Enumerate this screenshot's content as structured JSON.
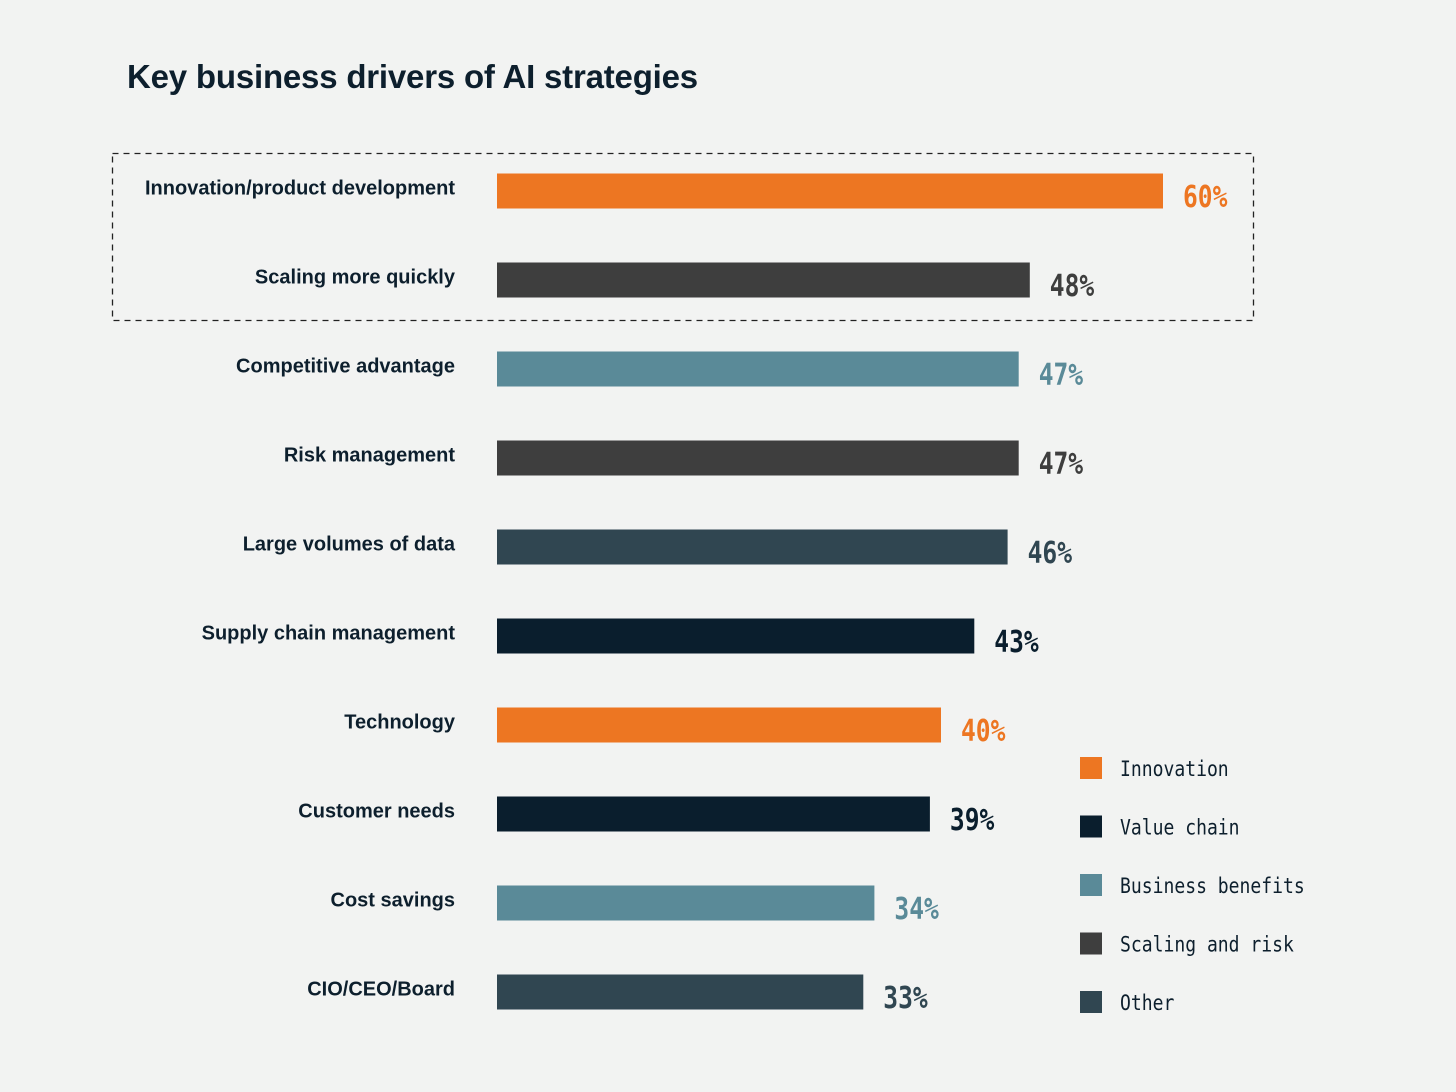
{
  "title": "Key business drivers of AI strategies",
  "chart_data": {
    "type": "bar",
    "orientation": "horizontal",
    "categories": [
      "Innovation/product development",
      "Scaling more quickly",
      "Competitive advantage",
      "Risk management",
      "Large volumes of data",
      "Supply chain management",
      "Technology",
      "Customer needs",
      "Cost savings",
      "CIO/CEO/Board"
    ],
    "values": [
      60,
      48,
      47,
      47,
      46,
      43,
      40,
      39,
      34,
      33
    ],
    "value_labels": [
      "60%",
      "48%",
      "47%",
      "47%",
      "46%",
      "43%",
      "40%",
      "39%",
      "34%",
      "33%"
    ],
    "groups": [
      "Innovation",
      "Scaling and risk",
      "Business benefits",
      "Scaling and risk",
      "Other",
      "Value chain",
      "Innovation",
      "Value chain",
      "Business benefits",
      "Other"
    ],
    "unit": "%",
    "xlim": [
      0,
      60
    ],
    "highlighted_categories": [
      "Innovation/product development",
      "Scaling more quickly"
    ],
    "legend": {
      "position": "bottom-right",
      "entries": [
        {
          "name": "Innovation",
          "color": "#ed7622"
        },
        {
          "name": "Value chain",
          "color": "#0a1e2d"
        },
        {
          "name": "Business benefits",
          "color": "#5a8a98"
        },
        {
          "name": "Scaling and risk",
          "color": "#3e3e3e"
        },
        {
          "name": "Other",
          "color": "#304651"
        }
      ]
    },
    "grid": false
  }
}
